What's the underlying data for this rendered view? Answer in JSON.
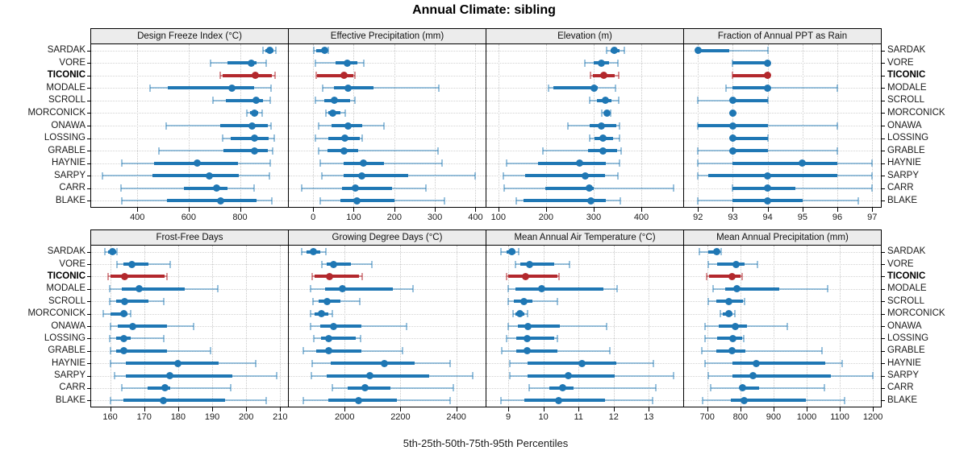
{
  "title": "Annual Climate: sibling",
  "axis_label": "5th-25th-50th-75th-95th Percentiles",
  "stations": [
    "SARDAK",
    "VORE",
    "TICONIC",
    "MODALE",
    "SCROLL",
    "MORCONICK",
    "ONAWA",
    "LOSSING",
    "GRABLE",
    "HAYNIE",
    "SARPY",
    "CARR",
    "BLAKE"
  ],
  "highlight_station": "TICONIC",
  "colors": {
    "series_blue": "#1f77b4",
    "series_blue_light": "rgba(31,119,180,0.45)",
    "highlight_red": "#b3282d",
    "highlight_red_light": "rgba(179,40,45,0.5)",
    "strip_bg": "#ececec",
    "grid": "#cccccc",
    "border": "#000000"
  },
  "chart_data": {
    "type": "percentile-dotplot",
    "percentiles": [
      5,
      25,
      50,
      75,
      95
    ],
    "layout": "2 rows x 4 cols trellis",
    "grid": true,
    "panels": [
      {
        "title": "Design Freeze Index (°C)",
        "row": 0,
        "col": 0,
        "xmin": 220,
        "xmax": 987,
        "ticks": [
          400,
          600,
          800
        ],
        "values": [
          [
            890,
            900,
            917,
            930,
            940
          ],
          [
            685,
            750,
            845,
            866,
            902
          ],
          [
            722,
            731,
            859,
            925,
            938
          ],
          [
            450,
            520,
            770,
            854,
            920
          ],
          [
            694,
            744,
            864,
            890,
            918
          ],
          [
            826,
            839,
            855,
            870,
            886
          ],
          [
            512,
            724,
            848,
            910,
            921
          ],
          [
            731,
            765,
            858,
            910,
            933
          ],
          [
            484,
            735,
            856,
            908,
            928
          ],
          [
            339,
            465,
            633,
            791,
            918
          ],
          [
            263,
            460,
            681,
            796,
            915
          ],
          [
            336,
            580,
            709,
            750,
            856
          ],
          [
            341,
            517,
            724,
            863,
            925
          ]
        ]
      },
      {
        "title": "Effective Precipitation (mm)",
        "row": 0,
        "col": 1,
        "xmin": -60,
        "xmax": 425,
        "ticks": [
          0,
          100,
          200,
          300,
          400
        ],
        "values": [
          [
            2,
            8,
            28,
            35,
            38
          ],
          [
            6,
            55,
            85,
            108,
            125
          ],
          [
            8,
            10,
            76,
            100,
            103
          ],
          [
            24,
            52,
            87,
            148,
            310
          ],
          [
            5,
            28,
            52,
            91,
            103
          ],
          [
            32,
            38,
            48,
            68,
            79
          ],
          [
            14,
            45,
            86,
            121,
            175
          ],
          [
            5,
            38,
            78,
            115,
            121
          ],
          [
            14,
            35,
            76,
            111,
            307
          ],
          [
            17,
            75,
            124,
            174,
            318
          ],
          [
            22,
            75,
            119,
            234,
            399
          ],
          [
            -28,
            71,
            103,
            194,
            277
          ],
          [
            17,
            68,
            108,
            201,
            323
          ]
        ]
      },
      {
        "title": "Elevation (m)",
        "row": 0,
        "col": 2,
        "xmin": 75,
        "xmax": 488,
        "ticks": [
          100,
          200,
          300,
          400
        ],
        "values": [
          [
            328,
            335,
            343,
            354,
            364
          ],
          [
            281,
            300,
            317,
            332,
            351
          ],
          [
            294,
            299,
            321,
            344,
            352
          ],
          [
            205,
            216,
            301,
            308,
            346
          ],
          [
            291,
            307,
            324,
            337,
            352
          ],
          [
            317,
            322,
            328,
            333,
            335
          ],
          [
            246,
            291,
            316,
            347,
            355
          ],
          [
            291,
            301,
            319,
            341,
            354
          ],
          [
            193,
            288,
            320,
            350,
            357
          ],
          [
            117,
            184,
            271,
            325,
            354
          ],
          [
            110,
            156,
            282,
            324,
            351
          ],
          [
            113,
            198,
            290,
            300,
            468
          ],
          [
            137,
            153,
            294,
            325,
            356
          ]
        ]
      },
      {
        "title": "Fraction of Annual PPT as Rain",
        "row": 0,
        "col": 3,
        "xmin": 91.6,
        "xmax": 97.25,
        "ticks": [
          92,
          93,
          94,
          95,
          96,
          97
        ],
        "values": [
          [
            92,
            92,
            92,
            92.9,
            94
          ],
          [
            93,
            93,
            94,
            94,
            94
          ],
          [
            93,
            93,
            94,
            94,
            94
          ],
          [
            92.8,
            93,
            94,
            94,
            96
          ],
          [
            92,
            93,
            93,
            94,
            94
          ],
          [
            93,
            93,
            93,
            93,
            93
          ],
          [
            92,
            92,
            93,
            94,
            96
          ],
          [
            93,
            93,
            93,
            94,
            94
          ],
          [
            92,
            93,
            93,
            94,
            96
          ],
          [
            92,
            93,
            95,
            96,
            97
          ],
          [
            92,
            92.3,
            94,
            96,
            97
          ],
          [
            93,
            93,
            94,
            94.8,
            97
          ],
          [
            92,
            93,
            94,
            95,
            96.6
          ]
        ]
      },
      {
        "title": "Frost-Free Days",
        "row": 1,
        "col": 0,
        "xmin": 154.4,
        "xmax": 212.3,
        "ticks": [
          160,
          170,
          180,
          190,
          200,
          210
        ],
        "values": [
          [
            158.5,
            159.5,
            160.8,
            161.7,
            162
          ],
          [
            162,
            163.8,
            166.5,
            171.3,
            177.6
          ],
          [
            159.4,
            160,
            164.2,
            176,
            176.6
          ],
          [
            159.8,
            163.4,
            168.5,
            181.9,
            191.7
          ],
          [
            159.8,
            161.8,
            164.2,
            171.3,
            175.7
          ],
          [
            157.9,
            160.2,
            164,
            165.1,
            166.1
          ],
          [
            160,
            162.2,
            166.7,
            176.8,
            184.6
          ],
          [
            159.8,
            161.8,
            164,
            166.1,
            175.7
          ],
          [
            160,
            161.8,
            164,
            176.8,
            189.5
          ],
          [
            160.2,
            164.6,
            179.9,
            192,
            202.8
          ],
          [
            161.2,
            164.6,
            177.6,
            196,
            209
          ],
          [
            163.5,
            170.9,
            176,
            177.6,
            195.4
          ],
          [
            160,
            163.8,
            175.7,
            193.7,
            205.9
          ]
        ]
      },
      {
        "title": "Growing Degree Days (°C)",
        "row": 1,
        "col": 1,
        "xmin": 1800,
        "xmax": 2505,
        "ticks": [
          2000,
          2200,
          2400
        ],
        "values": [
          [
            1846,
            1863,
            1889,
            1914,
            1933
          ],
          [
            1919,
            1936,
            1960,
            2022,
            2098
          ],
          [
            1884,
            1893,
            1946,
            2050,
            2063
          ],
          [
            1879,
            1931,
            1993,
            2174,
            2246
          ],
          [
            1887,
            1908,
            1936,
            1984,
            2055
          ],
          [
            1877,
            1893,
            1917,
            1941,
            1955
          ],
          [
            1879,
            1912,
            1960,
            2060,
            2222
          ],
          [
            1891,
            1917,
            1944,
            2040,
            2058
          ],
          [
            1853,
            1898,
            1944,
            2060,
            2206
          ],
          [
            1884,
            1950,
            2143,
            2250,
            2379
          ],
          [
            1881,
            1936,
            2089,
            2303,
            2460
          ],
          [
            1955,
            2012,
            2074,
            2165,
            2388
          ],
          [
            1853,
            1941,
            2050,
            2188,
            2379
          ]
        ]
      },
      {
        "title": "Mean Annual Air Temperature (°C)",
        "row": 1,
        "col": 2,
        "xmin": 8.38,
        "xmax": 13.98,
        "ticks": [
          9,
          10,
          11,
          12,
          13
        ],
        "values": [
          [
            8.8,
            8.95,
            9.1,
            9.2,
            9.3
          ],
          [
            9.2,
            9.35,
            9.6,
            10.3,
            10.75
          ],
          [
            8.95,
            9.0,
            9.5,
            10.4,
            10.45
          ],
          [
            9.0,
            9.2,
            9.95,
            11.7,
            12.1
          ],
          [
            9.0,
            9.17,
            9.44,
            9.7,
            10.4
          ],
          [
            9.13,
            9.2,
            9.34,
            9.47,
            9.56
          ],
          [
            9.0,
            9.28,
            9.56,
            10.47,
            11.8
          ],
          [
            8.95,
            9.24,
            9.53,
            10.3,
            10.4
          ],
          [
            8.82,
            9.24,
            9.53,
            10.39,
            11.9
          ],
          [
            9.04,
            9.55,
            11.1,
            12.07,
            13.12
          ],
          [
            9.04,
            9.55,
            10.72,
            12.03,
            13.7
          ],
          [
            9.6,
            10.16,
            10.54,
            10.85,
            13.2
          ],
          [
            8.8,
            9.47,
            10.43,
            11.76,
            13.1
          ]
        ]
      },
      {
        "title": "Mean Annual Precipitation (mm)",
        "row": 1,
        "col": 3,
        "xmin": 630,
        "xmax": 1224,
        "ticks": [
          700,
          800,
          900,
          1000,
          1100,
          1200
        ],
        "values": [
          [
            677,
            702,
            728,
            735,
            741
          ],
          [
            702,
            731,
            786,
            812,
            852
          ],
          [
            697,
            706,
            776,
            800,
            806
          ],
          [
            717,
            755,
            790,
            917,
            1064
          ],
          [
            702,
            727,
            765,
            807,
            812
          ],
          [
            739,
            747,
            765,
            775,
            783
          ],
          [
            694,
            735,
            785,
            820,
            941
          ],
          [
            694,
            731,
            778,
            805,
            810
          ],
          [
            684,
            727,
            775,
            815,
            1046
          ],
          [
            694,
            775,
            848,
            1055,
            1106
          ],
          [
            702,
            775,
            837,
            1074,
            1199
          ],
          [
            711,
            799,
            807,
            856,
            1054
          ],
          [
            686,
            771,
            812,
            997,
            1114
          ]
        ]
      }
    ]
  }
}
